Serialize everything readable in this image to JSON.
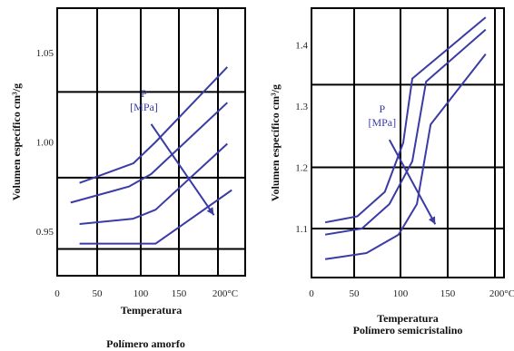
{
  "colors": {
    "curve": "#3b3ba6",
    "grid": "#000000",
    "text": "#111111"
  },
  "chart_data": [
    {
      "type": "line",
      "xlabel": "Temperatura",
      "ylabel": "Volumen específico  cm³/g",
      "caption": "Polímero amorfo",
      "xlim": [
        0,
        210
      ],
      "ylim": [
        0.925,
        1.075
      ],
      "xticks": [
        "0",
        "50",
        "100",
        "150",
        "200°C"
      ],
      "yticks": [
        {
          "value": 0.95,
          "label": "0.95"
        },
        {
          "value": 1.0,
          "label": "1.00"
        },
        {
          "value": 1.05,
          "label": "1.05"
        }
      ],
      "hgrid": [
        0.94,
        0.98,
        1.028,
        1.075
      ],
      "annotation": {
        "text1": "P",
        "text2": "[MPa]",
        "arrow_from": [
          105,
          1.01
        ],
        "arrow_to": [
          175,
          0.959
        ]
      },
      "series": [
        {
          "x": [
            25,
            85,
            110,
            190
          ],
          "y": [
            0.977,
            0.988,
            1.0,
            1.042
          ]
        },
        {
          "x": [
            15,
            80,
            105,
            190
          ],
          "y": [
            0.966,
            0.975,
            0.982,
            1.022
          ]
        },
        {
          "x": [
            25,
            85,
            110,
            190
          ],
          "y": [
            0.954,
            0.957,
            0.962,
            0.999
          ]
        },
        {
          "x": [
            25,
            60,
            110,
            195
          ],
          "y": [
            0.943,
            0.943,
            0.943,
            0.973
          ]
        }
      ]
    },
    {
      "type": "line",
      "xlabel": "Temperatura",
      "ylabel": "Volumen específico  cm³/g",
      "caption": "Polímero semicristalino",
      "xlim": [
        0,
        210
      ],
      "ylim": [
        1.02,
        1.46
      ],
      "xticks": [
        "0",
        "50",
        "100",
        "150",
        "200°C"
      ],
      "yticks": [
        {
          "value": 1.1,
          "label": "1.1"
        },
        {
          "value": 1.2,
          "label": "1.2"
        },
        {
          "value": 1.3,
          "label": "1.3"
        },
        {
          "value": 1.4,
          "label": "1.4"
        }
      ],
      "hgrid": [
        1.1,
        1.2,
        1.335,
        1.46
      ],
      "annotation": {
        "text1": "P",
        "text2": "[MPa]",
        "arrow_from": [
          85,
          1.245
        ],
        "arrow_to": [
          135,
          1.107
        ]
      },
      "series": [
        {
          "x": [
            15,
            50,
            80,
            100,
            110,
            190
          ],
          "y": [
            1.11,
            1.12,
            1.16,
            1.24,
            1.345,
            1.445
          ]
        },
        {
          "x": [
            15,
            55,
            85,
            110,
            125,
            190
          ],
          "y": [
            1.09,
            1.1,
            1.14,
            1.21,
            1.34,
            1.425
          ]
        },
        {
          "x": [
            15,
            60,
            95,
            115,
            130,
            190
          ],
          "y": [
            1.05,
            1.06,
            1.09,
            1.14,
            1.27,
            1.385
          ]
        }
      ]
    }
  ]
}
